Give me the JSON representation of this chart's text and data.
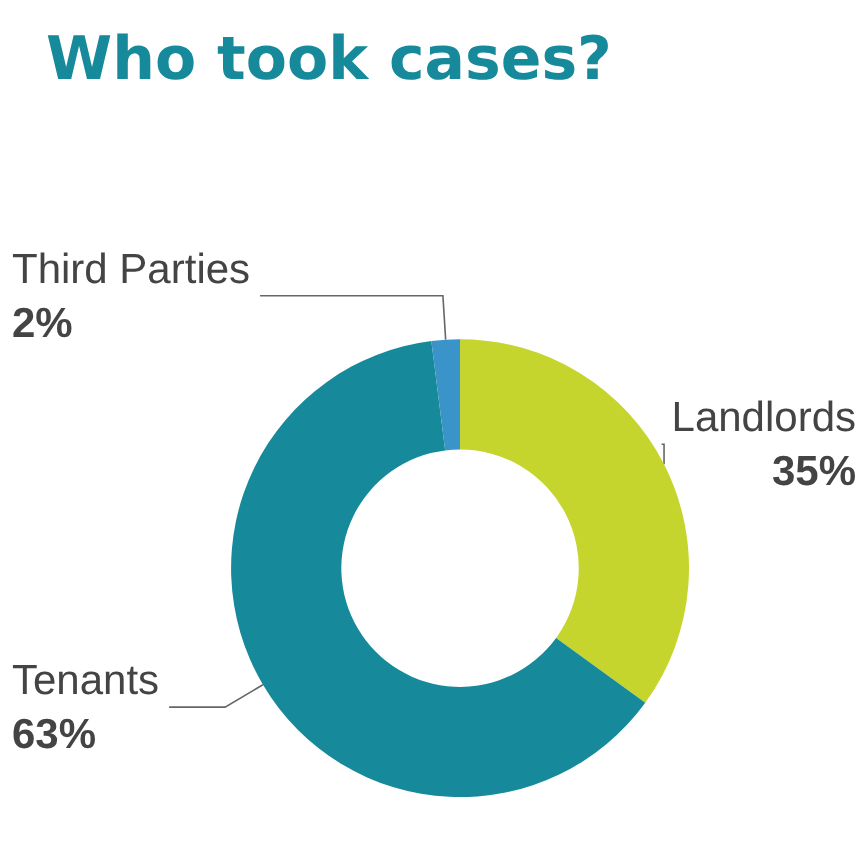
{
  "chart_data": {
    "type": "donut",
    "title": "Who took cases?",
    "categories": [
      "Landlords",
      "Tenants",
      "Third Parties"
    ],
    "values": [
      35,
      63,
      2
    ],
    "colors": [
      "#c5d52e",
      "#168a9a",
      "#3a93c9"
    ],
    "value_labels": [
      "35%",
      "63%",
      "2%"
    ],
    "legend": false
  }
}
